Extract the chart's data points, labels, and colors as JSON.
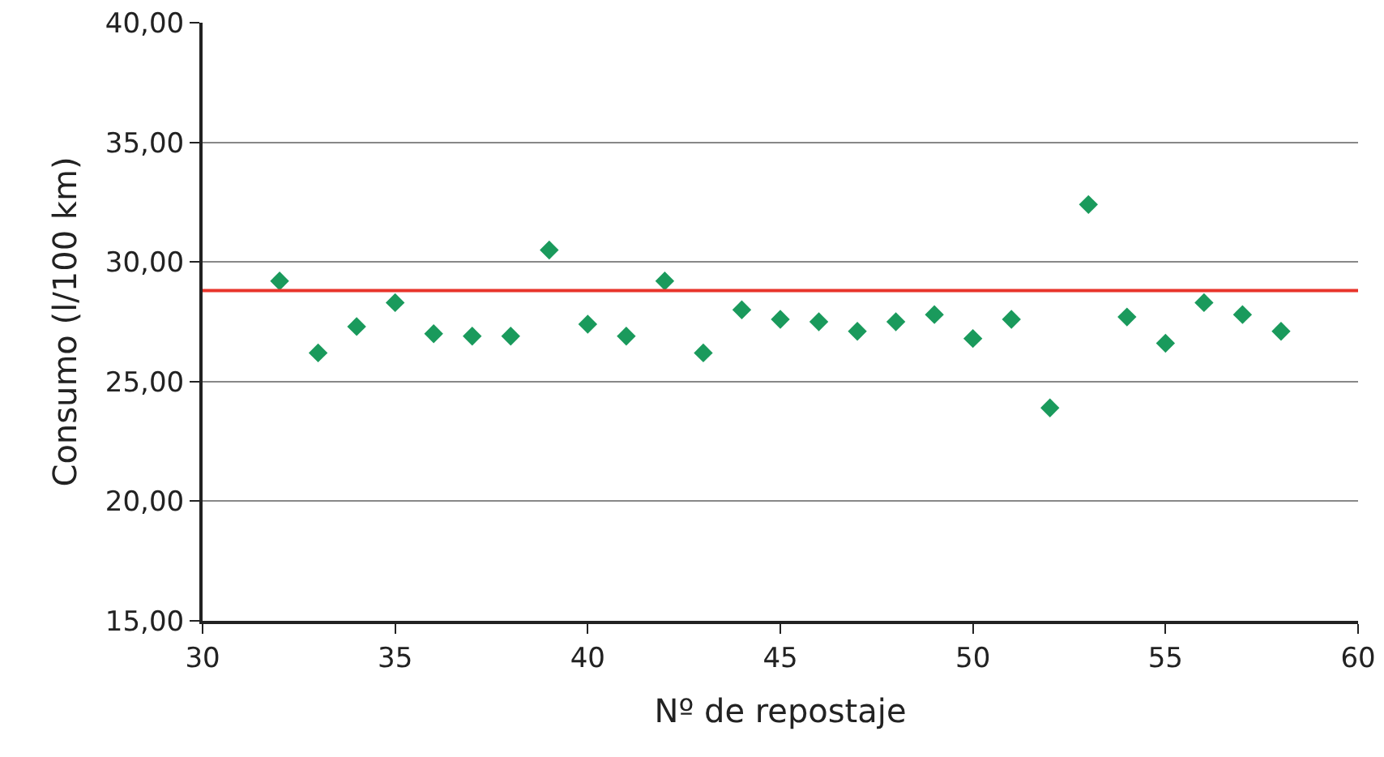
{
  "chart_data": {
    "type": "scatter",
    "xlabel": "Nº de repostaje",
    "ylabel": "Consumo (l/100 km)",
    "x": [
      32,
      33,
      34,
      35,
      36,
      37,
      38,
      39,
      40,
      41,
      42,
      43,
      44,
      45,
      46,
      47,
      48,
      49,
      50,
      51,
      52,
      53,
      54,
      55,
      56,
      57,
      58
    ],
    "series": [
      {
        "color": "#1a9a5c",
        "values": [
          29.2,
          26.2,
          27.3,
          28.3,
          27.0,
          26.9,
          26.9,
          30.5,
          27.4,
          26.9,
          29.2,
          26.2,
          28.0,
          27.6,
          27.5,
          27.1,
          27.5,
          27.8,
          26.8,
          27.6,
          23.9,
          32.4,
          27.7,
          26.6,
          28.3,
          27.8,
          27.1
        ]
      }
    ],
    "marker": "diamond",
    "grid": "y",
    "xlim": [
      30,
      60
    ],
    "xticks": [
      30,
      35,
      40,
      45,
      50,
      55,
      60
    ],
    "ylim": [
      15,
      40
    ],
    "yticks": [
      {
        "value": 15,
        "label": "15,00"
      },
      {
        "value": 20,
        "label": "20,00"
      },
      {
        "value": 25,
        "label": "25,00"
      },
      {
        "value": 30,
        "label": "30,00"
      },
      {
        "value": 35,
        "label": "35,00"
      },
      {
        "value": 40,
        "label": "40,00"
      }
    ],
    "ref_lines": [
      {
        "axis": "y",
        "value": 28.8,
        "color": "#e8342b"
      }
    ]
  }
}
